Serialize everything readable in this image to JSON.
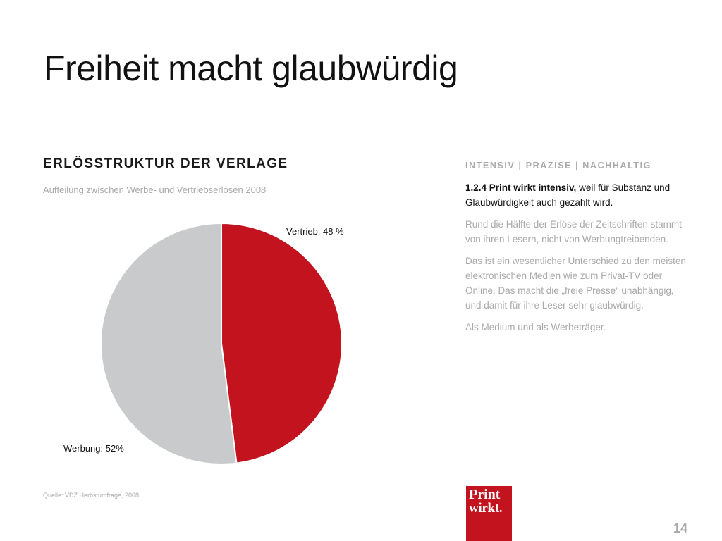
{
  "slide": {
    "title": "Freiheit macht glaubwürdig",
    "page_number": "14"
  },
  "chart_section": {
    "heading": "ERLÖSSTRUKTUR DER VERLAGE",
    "subheading": "Aufteilung zwischen Werbe- und Vertriebserlösen 2008",
    "source": "Quelle: VDZ Herbstumfrage, 2008"
  },
  "chart_data": {
    "type": "pie",
    "title": "ERLÖSSTRUKTUR DER VERLAGE",
    "subtitle": "Aufteilung zwischen Werbe- und Vertriebserlösen 2008",
    "slices": [
      {
        "name": "Vertrieb",
        "value": 48,
        "label": "Vertrieb: 48 %",
        "color": "#c3131f"
      },
      {
        "name": "Werbung",
        "value": 52,
        "label": "Werbung: 52%",
        "color": "#c9cacb"
      }
    ]
  },
  "sidebar": {
    "tagline": "INTENSIV | PRÄZISE | NACHHALTIG",
    "lead_bold": "1.2.4 Print wirkt intensiv,",
    "lead_text": " weil für Substanz und Glaubwürdigkeit auch gezahlt wird.",
    "paragraphs": [
      "Rund die Hälfte der Erlöse der Zeitschriften stammt von ihren Lesern, nicht von Werbungtreibenden.",
      "Das ist ein wesentlicher Unterschied zu den meisten elektronischen Medien wie zum Privat-TV oder Online. Das macht die „freie Presse“ unabhängig, und damit für ihre Leser sehr glaubwürdig.",
      "Als Medium und als Werbeträger."
    ]
  },
  "logo": {
    "line1": "Print",
    "line2": "wirkt."
  }
}
